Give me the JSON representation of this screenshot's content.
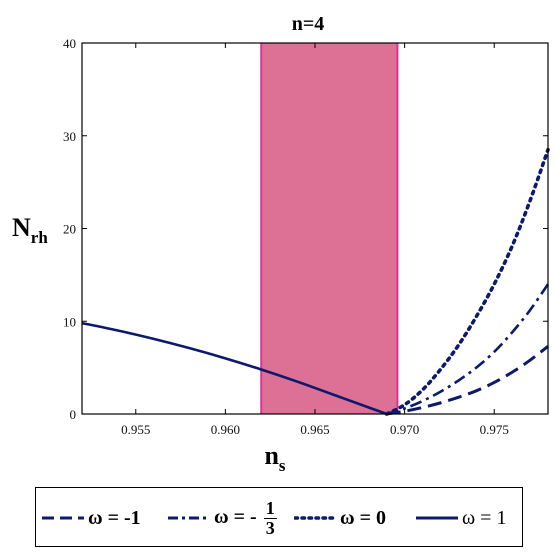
{
  "chart_data": {
    "type": "line",
    "title": "n=4",
    "xlabel": "n",
    "xlabel_sub": "s",
    "ylabel": "N",
    "ylabel_sub": "rh",
    "xlim": [
      0.952,
      0.978
    ],
    "ylim": [
      0,
      40
    ],
    "x_ticks": [
      "0.955",
      "0.960",
      "0.965",
      "0.970",
      "0.975"
    ],
    "y_ticks": [
      "0",
      "10",
      "20",
      "30",
      "40"
    ],
    "grid": false,
    "shaded_region": {
      "x": [
        0.962,
        0.9696
      ],
      "color": "#dc7095",
      "edge_color": "#e0309a"
    },
    "line_color": "#0c1a6b",
    "series": [
      {
        "name": "ω = -1",
        "style": "dashed",
        "x": [
          0.969,
          0.97,
          0.971,
          0.972,
          0.973,
          0.974,
          0.975,
          0.976,
          0.977,
          0.978
        ],
        "y": [
          0,
          0.3,
          0.7,
          1.2,
          1.8,
          2.5,
          3.4,
          4.5,
          5.8,
          7.3
        ]
      },
      {
        "name": "ω = -1/3",
        "style": "dashdot",
        "x": [
          0.969,
          0.97,
          0.971,
          0.972,
          0.973,
          0.974,
          0.975,
          0.976,
          0.977,
          0.978
        ],
        "y": [
          0,
          0.6,
          1.4,
          2.4,
          3.6,
          5.0,
          6.7,
          8.8,
          11.2,
          14.0
        ]
      },
      {
        "name": "ω = 0",
        "style": "dotted",
        "x": [
          0.969,
          0.97,
          0.971,
          0.972,
          0.973,
          0.974,
          0.975,
          0.976,
          0.977,
          0.978
        ],
        "y": [
          0,
          1.0,
          2.6,
          4.8,
          7.4,
          10.5,
          14.0,
          18.1,
          23.0,
          28.5
        ]
      },
      {
        "name": "ω = 1",
        "style": "solid",
        "x": [
          0.952,
          0.954,
          0.956,
          0.958,
          0.96,
          0.962,
          0.964,
          0.966,
          0.968,
          0.969
        ],
        "y": [
          9.8,
          9.0,
          8.1,
          7.1,
          6.0,
          4.8,
          3.5,
          2.1,
          0.7,
          0
        ]
      }
    ]
  },
  "legend": {
    "items": [
      {
        "style": "dashed",
        "label": "ω = -1",
        "bold": true
      },
      {
        "style": "dashdot",
        "label_prefix": "ω = -",
        "num": "1",
        "den": "3",
        "bold": true
      },
      {
        "style": "dotted",
        "label": "ω = 0",
        "bold": true
      },
      {
        "style": "solid",
        "label": "ω = 1",
        "bold": false
      }
    ]
  }
}
